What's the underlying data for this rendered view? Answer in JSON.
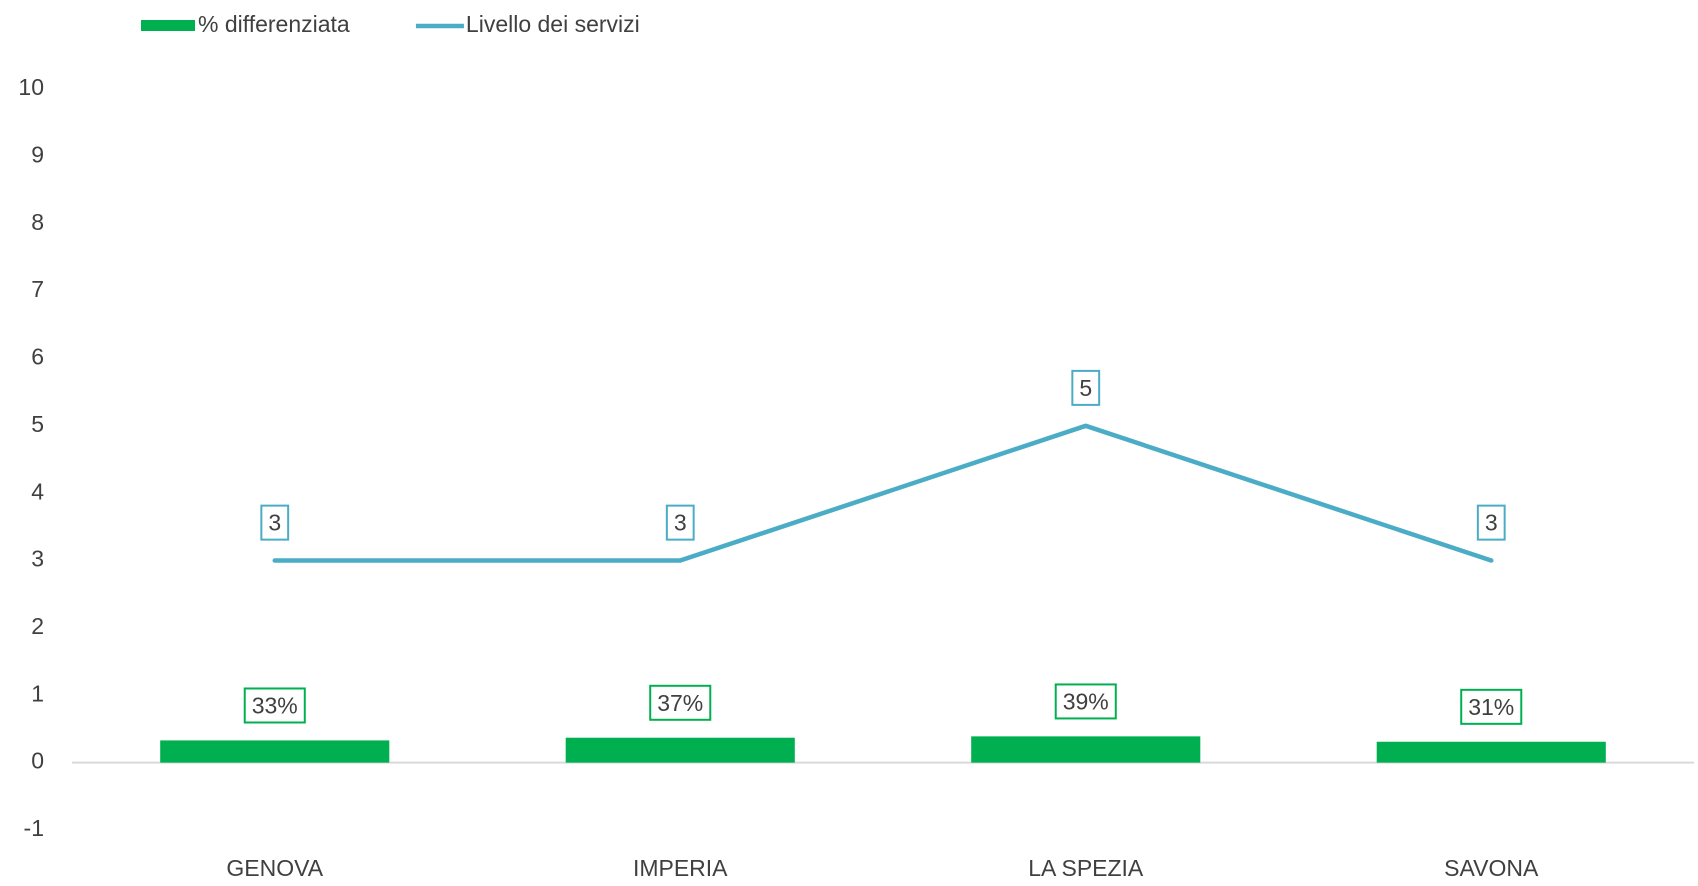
{
  "chart_data": {
    "type": "bar_line",
    "categories": [
      "GENOVA",
      "IMPERIA",
      "LA SPEZIA",
      "SAVONA"
    ],
    "series": [
      {
        "name": "% differenziata",
        "type": "bar",
        "color": "#00b050",
        "values": [
          0.33,
          0.37,
          0.39,
          0.31
        ],
        "value_labels": [
          "33%",
          "37%",
          "39%",
          "31%"
        ]
      },
      {
        "name": "Livello dei servizi",
        "type": "line",
        "color": "#4bacc6",
        "values": [
          3,
          3,
          5,
          3
        ]
      }
    ],
    "ylim": [
      -1,
      10
    ],
    "yticks": [
      -1,
      0,
      1,
      2,
      3,
      4,
      5,
      6,
      7,
      8,
      9,
      10
    ],
    "grid": false,
    "legend": "top-left"
  }
}
